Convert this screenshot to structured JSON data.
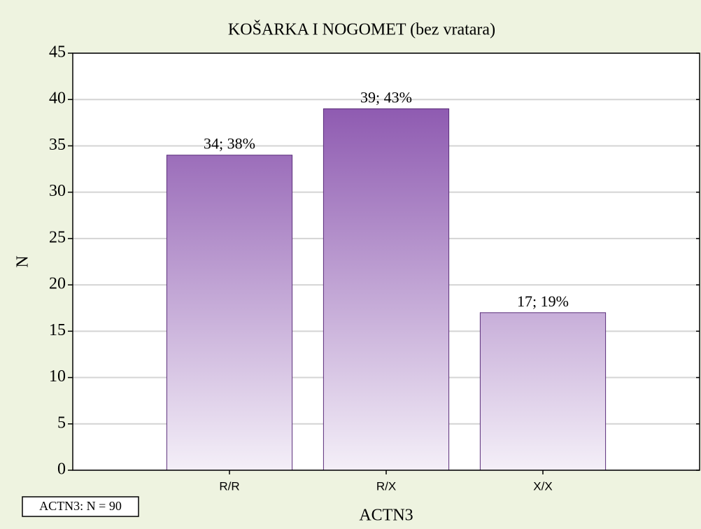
{
  "chart_data": {
    "type": "bar",
    "title": "KOŠARKA I NOGOMET (bez vratara)",
    "xlabel": "ACTN3",
    "ylabel": "N",
    "annotation": "ACTN3:  N = 90",
    "categories": [
      "R/R",
      "R/X",
      "X/X"
    ],
    "values": [
      34,
      39,
      17
    ],
    "value_labels": [
      "34; 38%",
      "39; 43%",
      "17; 19%"
    ],
    "color": "#7f44a6",
    "ylim": [
      0,
      45
    ],
    "yticks": [
      0,
      5,
      10,
      15,
      20,
      25,
      30,
      35,
      40,
      45
    ],
    "grid": true
  }
}
